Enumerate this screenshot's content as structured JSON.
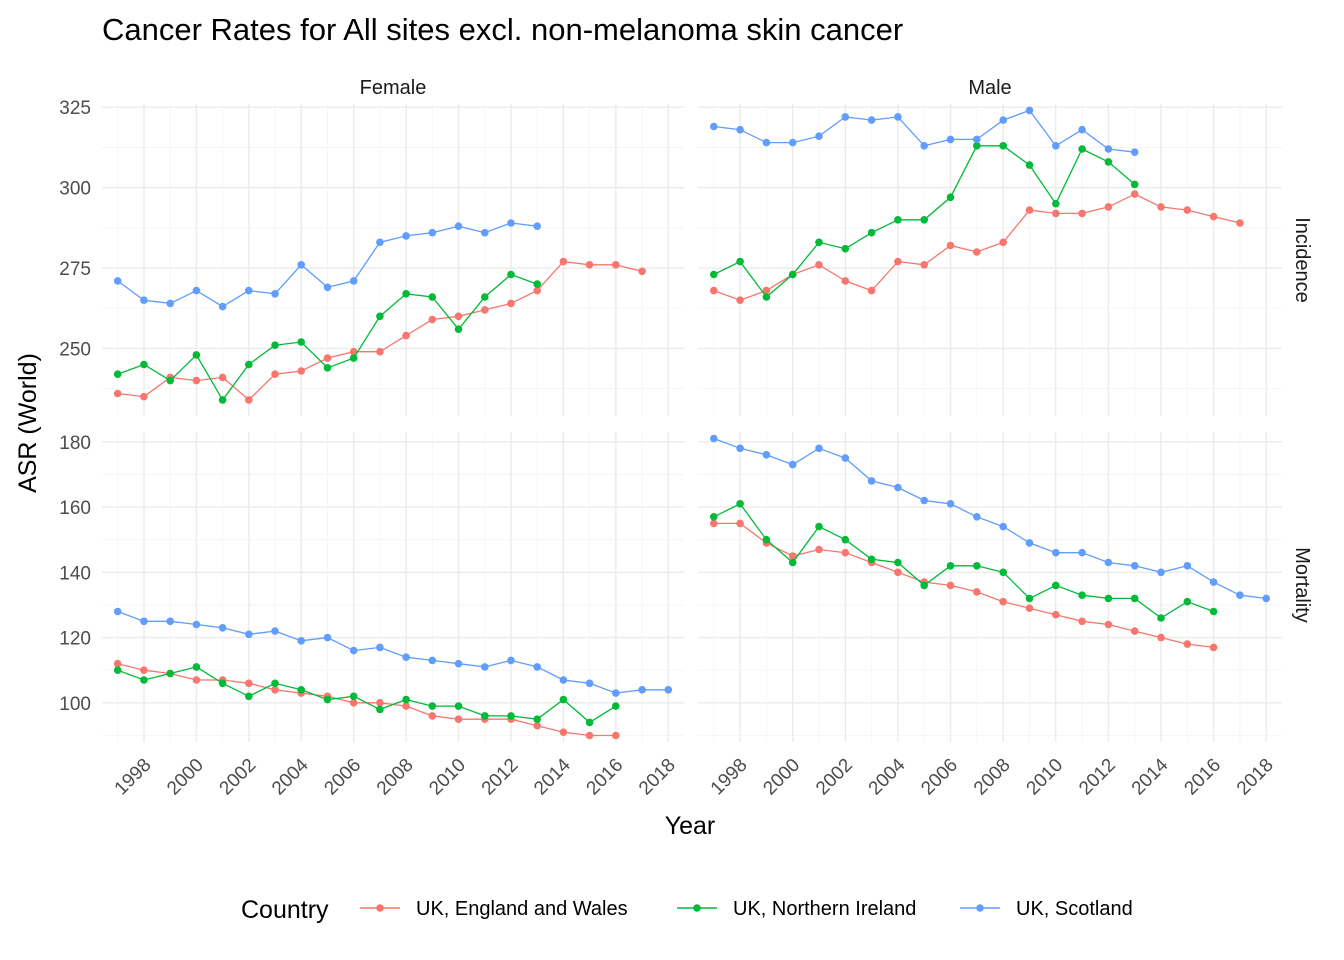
{
  "chart_data": {
    "type": "line",
    "title": "Cancer Rates for All sites excl. non-melanoma skin cancer",
    "xlabel": "Year",
    "ylabel": "ASR (World)",
    "legend_title": "Country",
    "legend_position": "bottom",
    "grid": true,
    "columns": [
      "Female",
      "Male"
    ],
    "rows": [
      "Incidence",
      "Mortality"
    ],
    "x_ticks": [
      "1998",
      "2000",
      "2002",
      "2004",
      "2006",
      "2008",
      "2010",
      "2012",
      "2014",
      "2016",
      "2018"
    ],
    "xlim": [
      1996.4,
      2018.6
    ],
    "row_scales": {
      "Incidence": {
        "ylim": [
          229,
          326
        ],
        "ticks": [
          "250",
          "275",
          "300",
          "325"
        ]
      },
      "Mortality": {
        "ylim": [
          88,
          183
        ],
        "ticks": [
          "100",
          "120",
          "140",
          "160",
          "180"
        ]
      }
    },
    "series_styles": [
      {
        "name": "UK, England and Wales",
        "color": "#F8766D"
      },
      {
        "name": "UK, Northern Ireland",
        "color": "#00BA38"
      },
      {
        "name": "UK, Scotland",
        "color": "#619CFF"
      }
    ],
    "panels": [
      {
        "column": "Female",
        "row": "Incidence",
        "series": [
          {
            "name": "UK, England and Wales",
            "x": [
              1997,
              1998,
              1999,
              2000,
              2001,
              2002,
              2003,
              2004,
              2005,
              2006,
              2007,
              2008,
              2009,
              2010,
              2011,
              2012,
              2013,
              2014,
              2015,
              2016,
              2017
            ],
            "values": [
              236,
              235,
              241,
              240,
              241,
              234,
              242,
              243,
              247,
              249,
              249,
              254,
              259,
              260,
              262,
              264,
              268,
              277,
              276,
              276,
              274
            ]
          },
          {
            "name": "UK, Northern Ireland",
            "x": [
              1997,
              1998,
              1999,
              2000,
              2001,
              2002,
              2003,
              2004,
              2005,
              2006,
              2007,
              2008,
              2009,
              2010,
              2011,
              2012,
              2013
            ],
            "values": [
              242,
              245,
              240,
              248,
              234,
              245,
              251,
              252,
              244,
              247,
              260,
              267,
              266,
              256,
              266,
              273,
              270
            ]
          },
          {
            "name": "UK, Scotland",
            "x": [
              1997,
              1998,
              1999,
              2000,
              2001,
              2002,
              2003,
              2004,
              2005,
              2006,
              2007,
              2008,
              2009,
              2010,
              2011,
              2012,
              2013
            ],
            "values": [
              271,
              265,
              264,
              268,
              263,
              268,
              267,
              276,
              269,
              271,
              283,
              285,
              286,
              288,
              286,
              289,
              288
            ]
          }
        ]
      },
      {
        "column": "Male",
        "row": "Incidence",
        "series": [
          {
            "name": "UK, England and Wales",
            "x": [
              1997,
              1998,
              1999,
              2000,
              2001,
              2002,
              2003,
              2004,
              2005,
              2006,
              2007,
              2008,
              2009,
              2010,
              2011,
              2012,
              2013,
              2014,
              2015,
              2016,
              2017
            ],
            "values": [
              268,
              265,
              268,
              273,
              276,
              271,
              268,
              277,
              276,
              282,
              280,
              283,
              293,
              292,
              292,
              294,
              298,
              294,
              293,
              291,
              289
            ]
          },
          {
            "name": "UK, Northern Ireland",
            "x": [
              1997,
              1998,
              1999,
              2000,
              2001,
              2002,
              2003,
              2004,
              2005,
              2006,
              2007,
              2008,
              2009,
              2010,
              2011,
              2012,
              2013
            ],
            "values": [
              273,
              277,
              266,
              273,
              283,
              281,
              286,
              290,
              290,
              297,
              313,
              313,
              307,
              295,
              312,
              308,
              301
            ]
          },
          {
            "name": "UK, Scotland",
            "x": [
              1997,
              1998,
              1999,
              2000,
              2001,
              2002,
              2003,
              2004,
              2005,
              2006,
              2007,
              2008,
              2009,
              2010,
              2011,
              2012,
              2013
            ],
            "values": [
              319,
              318,
              314,
              314,
              316,
              322,
              321,
              322,
              313,
              315,
              315,
              321,
              324,
              313,
              318,
              312,
              311
            ]
          }
        ]
      },
      {
        "column": "Female",
        "row": "Mortality",
        "series": [
          {
            "name": "UK, England and Wales",
            "x": [
              1997,
              1998,
              1999,
              2000,
              2001,
              2002,
              2003,
              2004,
              2005,
              2006,
              2007,
              2008,
              2009,
              2010,
              2011,
              2012,
              2013,
              2014,
              2015,
              2016
            ],
            "values": [
              112,
              110,
              109,
              107,
              107,
              106,
              104,
              103,
              102,
              100,
              100,
              99,
              96,
              95,
              95,
              95,
              93,
              91,
              90,
              90
            ]
          },
          {
            "name": "UK, Northern Ireland",
            "x": [
              1997,
              1998,
              1999,
              2000,
              2001,
              2002,
              2003,
              2004,
              2005,
              2006,
              2007,
              2008,
              2009,
              2010,
              2011,
              2012,
              2013,
              2014,
              2015,
              2016
            ],
            "values": [
              110,
              107,
              109,
              111,
              106,
              102,
              106,
              104,
              101,
              102,
              98,
              101,
              99,
              99,
              96,
              96,
              95,
              101,
              94,
              99
            ]
          },
          {
            "name": "UK, Scotland",
            "x": [
              1997,
              1998,
              1999,
              2000,
              2001,
              2002,
              2003,
              2004,
              2005,
              2006,
              2007,
              2008,
              2009,
              2010,
              2011,
              2012,
              2013,
              2014,
              2015,
              2016,
              2017,
              2018
            ],
            "values": [
              128,
              125,
              125,
              124,
              123,
              121,
              122,
              119,
              120,
              116,
              117,
              114,
              113,
              112,
              111,
              113,
              111,
              107,
              106,
              103,
              104,
              104
            ]
          }
        ]
      },
      {
        "column": "Male",
        "row": "Mortality",
        "series": [
          {
            "name": "UK, England and Wales",
            "x": [
              1997,
              1998,
              1999,
              2000,
              2001,
              2002,
              2003,
              2004,
              2005,
              2006,
              2007,
              2008,
              2009,
              2010,
              2011,
              2012,
              2013,
              2014,
              2015,
              2016
            ],
            "values": [
              155,
              155,
              149,
              145,
              147,
              146,
              143,
              140,
              137,
              136,
              134,
              131,
              129,
              127,
              125,
              124,
              122,
              120,
              118,
              117
            ]
          },
          {
            "name": "UK, Northern Ireland",
            "x": [
              1997,
              1998,
              1999,
              2000,
              2001,
              2002,
              2003,
              2004,
              2005,
              2006,
              2007,
              2008,
              2009,
              2010,
              2011,
              2012,
              2013,
              2014,
              2015,
              2016
            ],
            "values": [
              157,
              161,
              150,
              143,
              154,
              150,
              144,
              143,
              136,
              142,
              142,
              140,
              132,
              136,
              133,
              132,
              132,
              126,
              131,
              128
            ]
          },
          {
            "name": "UK, Scotland",
            "x": [
              1997,
              1998,
              1999,
              2000,
              2001,
              2002,
              2003,
              2004,
              2005,
              2006,
              2007,
              2008,
              2009,
              2010,
              2011,
              2012,
              2013,
              2014,
              2015,
              2016,
              2017,
              2018
            ],
            "values": [
              181,
              178,
              176,
              173,
              178,
              175,
              168,
              166,
              162,
              161,
              157,
              154,
              149,
              146,
              146,
              143,
              142,
              140,
              142,
              137,
              133,
              132
            ]
          }
        ]
      }
    ]
  }
}
